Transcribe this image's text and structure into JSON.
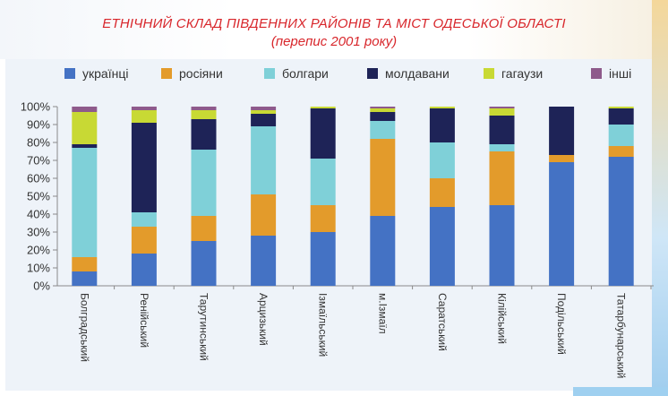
{
  "chart_data": {
    "type": "bar",
    "stacked": true,
    "title": "ЕТНІЧНИЙ СКЛАД ПІВДЕННИХ РАЙОНІВ ТА МІСТ ОДЕСЬКОЇ ОБЛАСТІ",
    "subtitle": "(перепис 2001 року)",
    "categories": [
      "Болградський",
      "Ренійський",
      "Тарутинський",
      "Арцизький",
      "Ізмаїльський",
      "м.Ізмаїл",
      "Саратський",
      "Кілійський",
      "Подільський",
      "Татарбунарський"
    ],
    "series": [
      {
        "name": "українці",
        "color": "#4472c4",
        "values": [
          8,
          18,
          25,
          28,
          30,
          39,
          44,
          45,
          69,
          72
        ]
      },
      {
        "name": "росіяни",
        "color": "#e39b2b",
        "values": [
          8,
          15,
          14,
          23,
          15,
          43,
          16,
          30,
          4,
          6
        ]
      },
      {
        "name": "болгари",
        "color": "#7fd0d8",
        "values": [
          61,
          8,
          37,
          38,
          26,
          10,
          20,
          4,
          0,
          12
        ]
      },
      {
        "name": "молдавани",
        "color": "#1e2357",
        "values": [
          2,
          50,
          17,
          7,
          28,
          5,
          19,
          16,
          27,
          9
        ]
      },
      {
        "name": "гагаузи",
        "color": "#c8d934",
        "values": [
          18,
          7,
          5,
          2,
          1,
          2,
          1,
          4,
          0,
          1
        ]
      },
      {
        "name": "інші",
        "color": "#8e5a8b",
        "values": [
          3,
          2,
          2,
          2,
          0,
          1,
          0,
          1,
          0,
          0
        ]
      }
    ],
    "ylim": [
      0,
      100
    ],
    "yticks": [
      "0%",
      "10%",
      "20%",
      "30%",
      "40%",
      "50%",
      "60%",
      "70%",
      "80%",
      "90%",
      "100%"
    ],
    "legend_position": "top",
    "grid": false
  }
}
